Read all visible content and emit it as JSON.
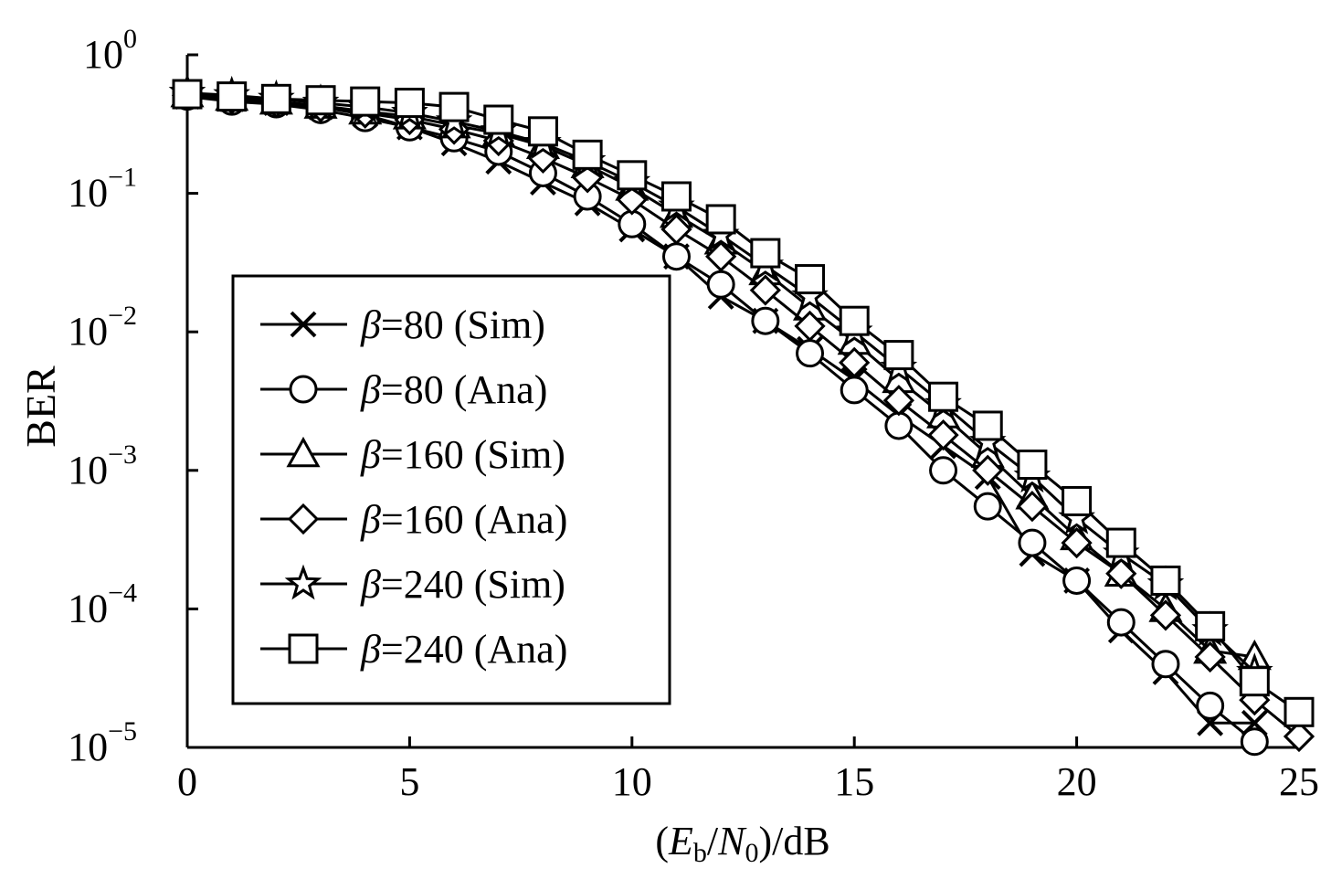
{
  "chart_data": {
    "type": "line",
    "xlabel": "(Eb/N0)/dB",
    "ylabel": "BER",
    "xlim": [
      0,
      25
    ],
    "ylim": [
      1e-05,
      1
    ],
    "y_scale": "log",
    "grid": false,
    "legend_position": "center-left",
    "x_ticks": [
      "0",
      "5",
      "10",
      "15",
      "20",
      "25"
    ],
    "y_ticks": [
      {
        "base": "10",
        "exp": "0"
      },
      {
        "base": "10",
        "exp": "−1"
      },
      {
        "base": "10",
        "exp": "−2"
      },
      {
        "base": "10",
        "exp": "−3"
      },
      {
        "base": "10",
        "exp": "−4"
      },
      {
        "base": "10",
        "exp": "−5"
      }
    ],
    "series": [
      {
        "name": "β=80 (Sim)",
        "label_greek": "β",
        "label_rest": "=80 (Sim)",
        "marker": "x",
        "x": [
          0,
          1,
          2,
          3,
          4,
          5,
          6,
          7,
          8,
          9,
          10,
          11,
          12,
          13,
          14,
          15,
          16,
          17,
          18,
          19,
          20,
          21,
          22,
          23,
          24
        ],
        "y": [
          0.5,
          0.48,
          0.45,
          0.42,
          0.37,
          0.3,
          0.23,
          0.17,
          0.12,
          0.085,
          0.055,
          0.035,
          0.018,
          0.012,
          0.0075,
          0.0045,
          0.0025,
          0.0015,
          0.0009,
          0.00025,
          0.00016,
          7e-05,
          3.5e-05,
          1.5e-05,
          1.5e-05
        ]
      },
      {
        "name": "β=80 (Ana)",
        "label_greek": "β",
        "label_rest": "=80 (Ana)",
        "marker": "circle",
        "x": [
          0,
          1,
          2,
          3,
          4,
          5,
          6,
          7,
          8,
          9,
          10,
          11,
          12,
          13,
          14,
          15,
          16,
          17,
          18,
          19,
          20,
          21,
          22,
          23,
          24
        ],
        "y": [
          0.5,
          0.46,
          0.44,
          0.4,
          0.35,
          0.3,
          0.25,
          0.2,
          0.14,
          0.095,
          0.06,
          0.035,
          0.022,
          0.012,
          0.007,
          0.0038,
          0.0021,
          0.001,
          0.00055,
          0.0003,
          0.00016,
          8e-05,
          4e-05,
          2e-05,
          1.1e-05
        ]
      },
      {
        "name": "β=160 (Sim)",
        "label_greek": "β",
        "label_rest": "=160 (Sim)",
        "marker": "triangle",
        "x": [
          0,
          1,
          2,
          3,
          4,
          5,
          6,
          7,
          8,
          9,
          10,
          11,
          12,
          13,
          14,
          15,
          16,
          17,
          18,
          19,
          20,
          21,
          22,
          23,
          24
        ],
        "y": [
          0.52,
          0.49,
          0.46,
          0.43,
          0.39,
          0.36,
          0.31,
          0.27,
          0.22,
          0.16,
          0.11,
          0.07,
          0.045,
          0.027,
          0.015,
          0.0085,
          0.0045,
          0.0025,
          0.0013,
          0.00065,
          0.00033,
          0.00018,
          0.0001,
          5e-05,
          4.5e-05
        ]
      },
      {
        "name": "β=160 (Ana)",
        "label_greek": "β",
        "label_rest": "=160 (Ana)",
        "marker": "diamond",
        "x": [
          0,
          1,
          2,
          3,
          4,
          5,
          6,
          7,
          8,
          9,
          10,
          11,
          12,
          13,
          14,
          15,
          16,
          17,
          18,
          19,
          20,
          21,
          22,
          23,
          24,
          25
        ],
        "y": [
          0.51,
          0.48,
          0.45,
          0.42,
          0.38,
          0.34,
          0.29,
          0.24,
          0.18,
          0.13,
          0.09,
          0.055,
          0.035,
          0.02,
          0.011,
          0.006,
          0.0032,
          0.0018,
          0.001,
          0.00055,
          0.0003,
          0.00018,
          9e-05,
          4.5e-05,
          2.2e-05,
          1.2e-05
        ]
      },
      {
        "name": "β=240 (Sim)",
        "label_greek": "β",
        "label_rest": "=240 (Sim)",
        "marker": "star",
        "x": [
          0,
          1,
          2,
          3,
          4,
          5,
          6,
          7,
          8,
          9,
          10,
          11,
          12,
          13,
          14,
          15,
          16,
          17,
          18,
          19,
          20,
          21,
          22,
          23,
          24
        ],
        "y": [
          0.53,
          0.51,
          0.48,
          0.45,
          0.42,
          0.38,
          0.33,
          0.28,
          0.23,
          0.17,
          0.12,
          0.08,
          0.05,
          0.03,
          0.018,
          0.01,
          0.0055,
          0.003,
          0.0016,
          0.0009,
          0.00045,
          0.00025,
          0.00015,
          7e-05,
          3.5e-05
        ]
      },
      {
        "name": "β=240 (Ana)",
        "label_greek": "β",
        "label_rest": "=240 (Ana)",
        "marker": "square",
        "x": [
          0,
          1,
          2,
          3,
          4,
          5,
          6,
          7,
          8,
          9,
          10,
          11,
          12,
          13,
          14,
          15,
          16,
          17,
          18,
          19,
          20,
          21,
          22,
          23,
          24,
          25
        ],
        "y": [
          0.52,
          0.5,
          0.48,
          0.47,
          0.46,
          0.45,
          0.42,
          0.34,
          0.28,
          0.19,
          0.135,
          0.095,
          0.065,
          0.037,
          0.024,
          0.012,
          0.0068,
          0.0034,
          0.0021,
          0.0011,
          0.0006,
          0.0003,
          0.00016,
          7.5e-05,
          3e-05,
          1.8e-05
        ]
      }
    ]
  }
}
